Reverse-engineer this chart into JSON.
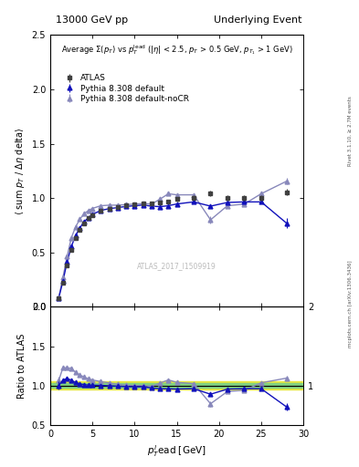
{
  "title_left": "13000 GeV pp",
  "title_right": "Underlying Event",
  "annotation": "ATLAS_2017_I1509919",
  "right_label_top": "Rivet 3.1.10, ≥ 2.7M events",
  "right_label_bot": "mcplots.cern.ch [arXiv:1306.3436]",
  "ylabel": "⟨ sum p_T / Δη delta⟩",
  "ylabel_ratio": "Ratio to ATLAS",
  "xlabel": "p_T^lead [GeV]",
  "xlim": [
    0,
    30
  ],
  "ylim": [
    0,
    2.5
  ],
  "ylim_ratio": [
    0.5,
    2.0
  ],
  "yticks_main": [
    0,
    0.5,
    1.0,
    1.5,
    2.0,
    2.5
  ],
  "yticks_ratio": [
    0.5,
    1.0,
    1.5,
    2.0
  ],
  "atlas_x": [
    1.0,
    1.5,
    2.0,
    2.5,
    3.0,
    3.5,
    4.0,
    4.5,
    5.0,
    6.0,
    7.0,
    8.0,
    9.0,
    10.0,
    11.0,
    12.0,
    13.0,
    14.0,
    15.0,
    17.0,
    19.0,
    21.0,
    23.0,
    25.0,
    28.0
  ],
  "atlas_y": [
    0.08,
    0.22,
    0.38,
    0.52,
    0.63,
    0.71,
    0.77,
    0.815,
    0.845,
    0.885,
    0.905,
    0.92,
    0.935,
    0.945,
    0.95,
    0.955,
    0.96,
    0.97,
    0.99,
    1.005,
    1.04,
    1.005,
    1.005,
    1.005,
    1.055
  ],
  "atlas_yerr": [
    0.012,
    0.012,
    0.015,
    0.015,
    0.015,
    0.015,
    0.015,
    0.015,
    0.015,
    0.015,
    0.015,
    0.015,
    0.015,
    0.015,
    0.015,
    0.015,
    0.015,
    0.015,
    0.02,
    0.02,
    0.025,
    0.025,
    0.025,
    0.025,
    0.03
  ],
  "py_default_x": [
    1.0,
    1.5,
    2.0,
    2.5,
    3.0,
    3.5,
    4.0,
    4.5,
    5.0,
    6.0,
    7.0,
    8.0,
    9.0,
    10.0,
    11.0,
    12.0,
    13.0,
    14.0,
    15.0,
    17.0,
    19.0,
    21.0,
    23.0,
    25.0,
    28.0
  ],
  "py_default_y": [
    0.08,
    0.235,
    0.415,
    0.555,
    0.655,
    0.725,
    0.78,
    0.82,
    0.85,
    0.887,
    0.903,
    0.913,
    0.923,
    0.93,
    0.936,
    0.926,
    0.921,
    0.93,
    0.946,
    0.965,
    0.926,
    0.96,
    0.965,
    0.965,
    0.77
  ],
  "py_default_yerr": [
    0.004,
    0.004,
    0.006,
    0.006,
    0.006,
    0.006,
    0.006,
    0.006,
    0.006,
    0.006,
    0.006,
    0.006,
    0.006,
    0.006,
    0.006,
    0.006,
    0.006,
    0.006,
    0.008,
    0.008,
    0.012,
    0.012,
    0.012,
    0.012,
    0.045
  ],
  "py_nocr_x": [
    1.0,
    1.5,
    2.0,
    2.5,
    3.0,
    3.5,
    4.0,
    4.5,
    5.0,
    6.0,
    7.0,
    8.0,
    9.0,
    10.0,
    11.0,
    12.0,
    13.0,
    14.0,
    15.0,
    17.0,
    19.0,
    21.0,
    23.0,
    25.0,
    28.0
  ],
  "py_nocr_y": [
    0.085,
    0.27,
    0.465,
    0.635,
    0.735,
    0.805,
    0.855,
    0.885,
    0.905,
    0.93,
    0.935,
    0.935,
    0.94,
    0.945,
    0.95,
    0.945,
    0.99,
    1.04,
    1.03,
    1.03,
    0.8,
    0.93,
    0.945,
    1.04,
    1.155
  ],
  "py_nocr_yerr": [
    0.004,
    0.004,
    0.006,
    0.006,
    0.006,
    0.006,
    0.006,
    0.006,
    0.006,
    0.006,
    0.006,
    0.006,
    0.006,
    0.006,
    0.006,
    0.006,
    0.006,
    0.006,
    0.008,
    0.008,
    0.035,
    0.012,
    0.012,
    0.018,
    0.03
  ],
  "color_atlas": "#404040",
  "color_default": "#1111bb",
  "color_nocr": "#8888bb",
  "band_green": "#80d080",
  "band_yellow": "#e8e840"
}
